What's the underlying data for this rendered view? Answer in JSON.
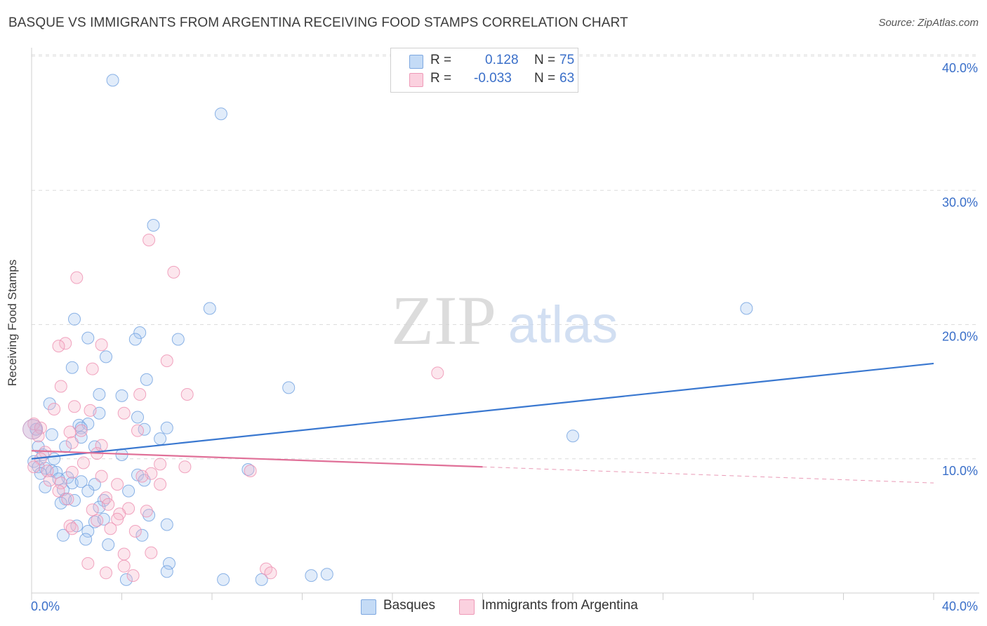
{
  "header": {
    "title": "BASQUE VS IMMIGRANTS FROM ARGENTINA RECEIVING FOOD STAMPS CORRELATION CHART",
    "source": "Source: ZipAtlas.com"
  },
  "watermark": {
    "zip": "ZIP",
    "atlas": "atlas"
  },
  "legend_box": {
    "rows": [
      {
        "r_label": "R =",
        "r_value": "0.128",
        "n_label": "N =",
        "n_value": "75",
        "color": "#a8c8f0"
      },
      {
        "r_label": "R =",
        "r_value": "-0.033",
        "n_label": "N =",
        "n_value": "63",
        "color": "#f6b8cc"
      }
    ]
  },
  "bottom_legend": [
    {
      "label": "Basques",
      "color": "#a8c8f0"
    },
    {
      "label": "Immigrants from Argentina",
      "color": "#f6b8cc"
    }
  ],
  "chart_data": {
    "type": "scatter",
    "title": "BASQUE VS IMMIGRANTS FROM ARGENTINA RECEIVING FOOD STAMPS CORRELATION CHART",
    "xlabel": "",
    "ylabel": "Receiving Food Stamps",
    "xlim": [
      0,
      40
    ],
    "ylim": [
      0,
      40
    ],
    "x_tick_labels": [
      "0.0%",
      "40.0%"
    ],
    "y_tick_labels": [
      "10.0%",
      "20.0%",
      "30.0%",
      "40.0%"
    ],
    "y_ticks": [
      10,
      20,
      30,
      40
    ],
    "grid": true,
    "legend_position": "top-center",
    "series": [
      {
        "name": "Basques",
        "color": "#6fa0e0",
        "fill": "rgba(168,200,240,0.35)",
        "R": 0.128,
        "N": 75,
        "trend": {
          "x0": 0,
          "y0": 10.0,
          "x1": 40,
          "y1": 17.1,
          "line_color": "#3a78d0"
        },
        "points": [
          [
            3.6,
            38.2
          ],
          [
            8.4,
            35.7
          ],
          [
            5.4,
            27.4
          ],
          [
            7.9,
            21.2
          ],
          [
            31.7,
            21.2
          ],
          [
            1.9,
            20.4
          ],
          [
            2.5,
            19.0
          ],
          [
            4.8,
            19.4
          ],
          [
            4.6,
            18.9
          ],
          [
            6.5,
            18.9
          ],
          [
            3.3,
            17.6
          ],
          [
            1.8,
            16.8
          ],
          [
            5.1,
            15.9
          ],
          [
            11.4,
            15.3
          ],
          [
            3.0,
            14.8
          ],
          [
            4.0,
            14.7
          ],
          [
            0.8,
            14.1
          ],
          [
            3.0,
            13.4
          ],
          [
            4.7,
            13.1
          ],
          [
            2.1,
            12.5
          ],
          [
            5.0,
            12.2
          ],
          [
            2.5,
            12.6
          ],
          [
            2.2,
            12.3
          ],
          [
            6.0,
            12.3
          ],
          [
            5.7,
            11.5
          ],
          [
            24.0,
            11.7
          ],
          [
            0.9,
            11.8
          ],
          [
            0.2,
            12.2
          ],
          [
            2.2,
            11.6
          ],
          [
            0.3,
            10.9
          ],
          [
            1.5,
            10.9
          ],
          [
            2.8,
            10.9
          ],
          [
            4.0,
            10.3
          ],
          [
            0.5,
            10.3
          ],
          [
            1.0,
            10.0
          ],
          [
            0.1,
            9.8
          ],
          [
            0.3,
            9.4
          ],
          [
            0.6,
            9.3
          ],
          [
            0.9,
            9.1
          ],
          [
            1.1,
            9.0
          ],
          [
            0.4,
            8.9
          ],
          [
            1.6,
            8.6
          ],
          [
            9.6,
            9.2
          ],
          [
            4.7,
            8.8
          ],
          [
            5.0,
            8.4
          ],
          [
            1.2,
            8.5
          ],
          [
            1.8,
            8.2
          ],
          [
            2.2,
            8.3
          ],
          [
            2.8,
            8.1
          ],
          [
            0.6,
            7.9
          ],
          [
            1.4,
            7.7
          ],
          [
            2.5,
            7.6
          ],
          [
            4.3,
            7.6
          ],
          [
            1.5,
            7.0
          ],
          [
            1.9,
            6.9
          ],
          [
            3.2,
            6.9
          ],
          [
            1.3,
            6.7
          ],
          [
            3.0,
            6.4
          ],
          [
            5.2,
            5.8
          ],
          [
            2.8,
            5.3
          ],
          [
            3.2,
            5.5
          ],
          [
            2.0,
            5.0
          ],
          [
            6.0,
            5.1
          ],
          [
            2.5,
            4.6
          ],
          [
            1.4,
            4.3
          ],
          [
            4.9,
            4.3
          ],
          [
            2.4,
            4.0
          ],
          [
            3.4,
            3.6
          ],
          [
            6.1,
            2.2
          ],
          [
            6.0,
            1.6
          ],
          [
            4.2,
            1.0
          ],
          [
            8.5,
            1.0
          ],
          [
            10.2,
            1.0
          ],
          [
            12.4,
            1.3
          ],
          [
            13.1,
            1.4
          ]
        ]
      },
      {
        "name": "Immigrants from Argentina",
        "color": "#ee8fb0",
        "fill": "rgba(246,184,204,0.35)",
        "R": -0.033,
        "N": 63,
        "trend": {
          "x0": 0,
          "y0": 10.6,
          "x1": 20,
          "y1": 9.4,
          "dashed_to_x": 40,
          "dashed_to_y": 8.2,
          "line_color": "#e07098"
        },
        "points": [
          [
            5.2,
            26.3
          ],
          [
            6.3,
            23.9
          ],
          [
            2.0,
            23.5
          ],
          [
            1.5,
            18.6
          ],
          [
            3.1,
            18.5
          ],
          [
            1.2,
            18.4
          ],
          [
            6.0,
            17.3
          ],
          [
            2.7,
            16.7
          ],
          [
            18.0,
            16.4
          ],
          [
            1.3,
            15.4
          ],
          [
            4.8,
            14.8
          ],
          [
            6.9,
            14.8
          ],
          [
            1.9,
            13.9
          ],
          [
            1.0,
            13.7
          ],
          [
            2.6,
            13.6
          ],
          [
            4.1,
            13.4
          ],
          [
            0.1,
            12.6
          ],
          [
            0.4,
            12.3
          ],
          [
            4.7,
            12.1
          ],
          [
            2.2,
            12.1
          ],
          [
            1.7,
            12.0
          ],
          [
            0.3,
            11.7
          ],
          [
            1.8,
            11.2
          ],
          [
            3.1,
            11.0
          ],
          [
            2.9,
            10.4
          ],
          [
            0.6,
            10.5
          ],
          [
            0.4,
            10.0
          ],
          [
            2.3,
            9.7
          ],
          [
            5.7,
            9.6
          ],
          [
            6.8,
            9.4
          ],
          [
            9.7,
            9.1
          ],
          [
            0.1,
            9.4
          ],
          [
            0.7,
            9.1
          ],
          [
            1.8,
            9.0
          ],
          [
            5.3,
            8.9
          ],
          [
            4.9,
            8.7
          ],
          [
            3.1,
            8.7
          ],
          [
            0.8,
            8.4
          ],
          [
            1.3,
            8.2
          ],
          [
            3.8,
            8.1
          ],
          [
            5.7,
            8.1
          ],
          [
            1.2,
            7.6
          ],
          [
            3.3,
            7.1
          ],
          [
            1.6,
            7.0
          ],
          [
            3.4,
            6.6
          ],
          [
            4.3,
            6.3
          ],
          [
            5.1,
            6.1
          ],
          [
            2.7,
            6.2
          ],
          [
            3.9,
            5.9
          ],
          [
            3.8,
            5.5
          ],
          [
            2.9,
            5.4
          ],
          [
            1.7,
            5.0
          ],
          [
            3.5,
            4.8
          ],
          [
            1.8,
            4.8
          ],
          [
            4.1,
            2.9
          ],
          [
            2.5,
            2.2
          ],
          [
            10.4,
            1.8
          ],
          [
            10.6,
            1.5
          ],
          [
            4.1,
            2.0
          ],
          [
            3.3,
            1.5
          ],
          [
            4.5,
            1.3
          ],
          [
            5.3,
            3.0
          ],
          [
            4.6,
            4.6
          ]
        ]
      }
    ]
  }
}
